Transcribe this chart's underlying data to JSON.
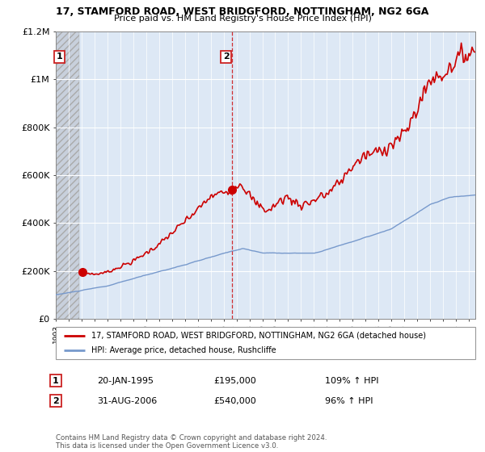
{
  "title": "17, STAMFORD ROAD, WEST BRIDGFORD, NOTTINGHAM, NG2 6GA",
  "subtitle": "Price paid vs. HM Land Registry's House Price Index (HPI)",
  "legend_line1": "17, STAMFORD ROAD, WEST BRIDGFORD, NOTTINGHAM, NG2 6GA (detached house)",
  "legend_line2": "HPI: Average price, detached house, Rushcliffe",
  "annotation1_date": "20-JAN-1995",
  "annotation1_price": "£195,000",
  "annotation1_hpi": "109% ↑ HPI",
  "annotation2_date": "31-AUG-2006",
  "annotation2_price": "£540,000",
  "annotation2_hpi": "96% ↑ HPI",
  "footer": "Contains HM Land Registry data © Crown copyright and database right 2024.\nThis data is licensed under the Open Government Licence v3.0.",
  "red_color": "#cc0000",
  "blue_color": "#7799cc",
  "point1_x": 1995.05,
  "point1_y": 195000,
  "point2_x": 2006.66,
  "point2_y": 540000,
  "vline_x": 2006.66,
  "ylim": [
    0,
    1200000
  ],
  "xlim": [
    1993.0,
    2025.5
  ],
  "yticks": [
    0,
    200000,
    400000,
    600000,
    800000,
    1000000,
    1200000
  ],
  "ylabels": [
    "£0",
    "£200K",
    "£400K",
    "£600K",
    "£800K",
    "£1M",
    "£1.2M"
  ]
}
